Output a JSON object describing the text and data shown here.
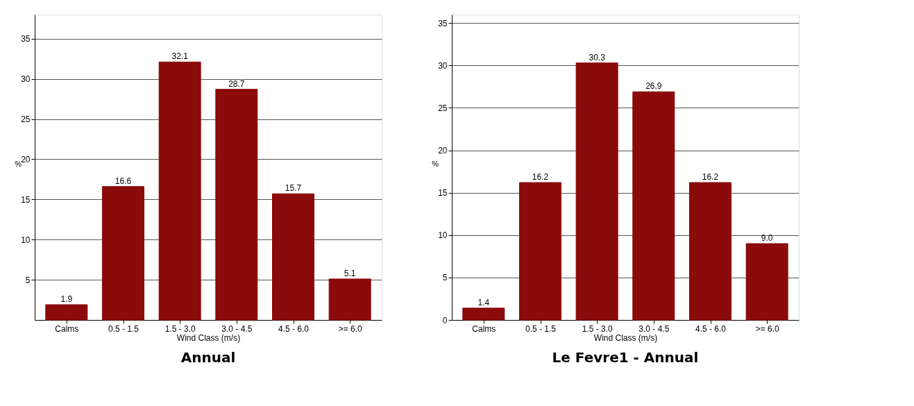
{
  "chart_data": [
    {
      "type": "bar",
      "title": "Annual",
      "xlabel": "Wind Class (m/s)",
      "ylabel": "%",
      "categories": [
        "Calms",
        "0.5 -  1.5",
        "1.5 -  3.0",
        "3.0 -  4.5",
        "4.5 -  6.0",
        ">=  6.0"
      ],
      "values": [
        1.9,
        16.6,
        32.1,
        28.7,
        15.7,
        5.1
      ],
      "value_labels": [
        "1.9",
        "16.6",
        "32.1",
        "28.7",
        "15.7",
        "5.1"
      ],
      "color": "#8b0a0a",
      "ylim": [
        0,
        38
      ],
      "yticks": [
        5,
        10,
        15,
        20,
        25,
        30,
        35
      ],
      "grid": "y"
    },
    {
      "type": "bar",
      "title": "Le Fevre1 - Annual",
      "xlabel": "Wind Class (m/s)",
      "ylabel": "%",
      "categories": [
        "Calms",
        "0.5 -  1.5",
        "1.5 -  3.0",
        "3.0 -  4.5",
        "4.5 -  6.0",
        ">=  6.0"
      ],
      "values": [
        1.4,
        16.2,
        30.3,
        26.9,
        16.2,
        9.0
      ],
      "value_labels": [
        "1.4",
        "16.2",
        "30.3",
        "26.9",
        "16.2",
        "9.0"
      ],
      "color": "#8b0a0a",
      "ylim": [
        0,
        36
      ],
      "yticks": [
        0,
        5,
        10,
        15,
        20,
        25,
        30,
        35
      ],
      "grid": "y"
    }
  ]
}
